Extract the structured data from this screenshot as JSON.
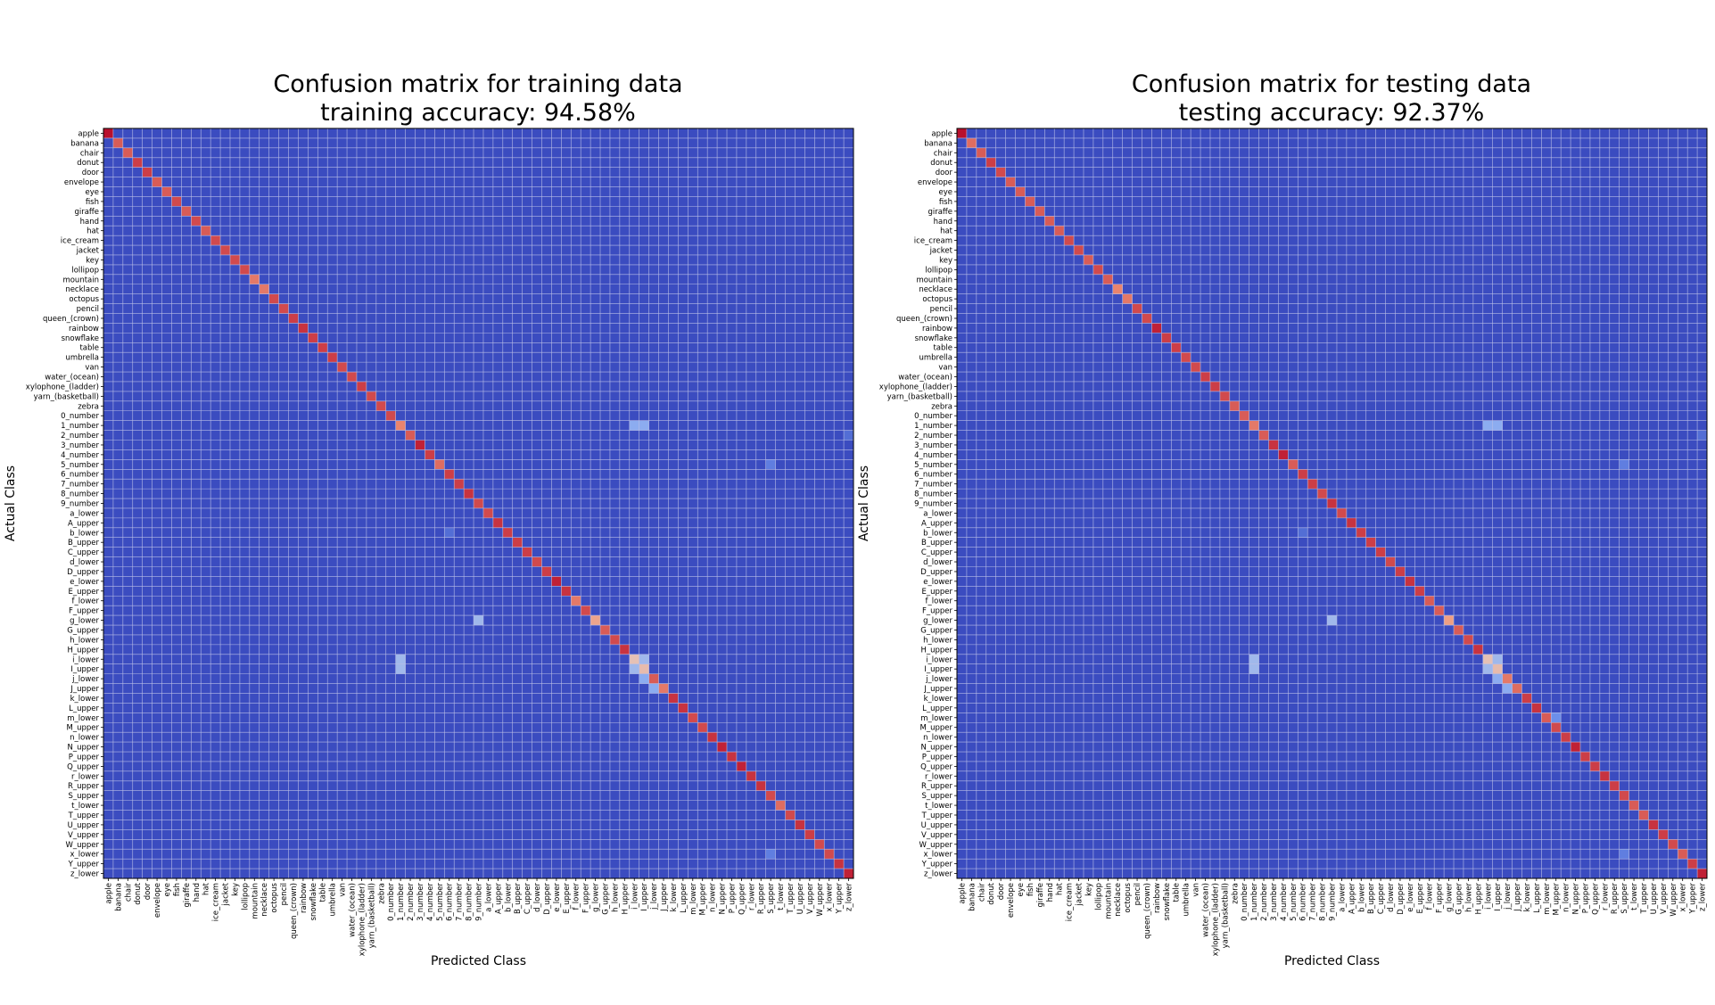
{
  "chart_data": [
    {
      "type": "heatmap",
      "title": "Confusion matrix for training data",
      "subtitle": "training accuracy: 94.58%",
      "xlabel": "Predicted Class",
      "ylabel": "Actual Class",
      "grid": true,
      "colormap": "coolwarm",
      "classes": [
        "apple",
        "banana",
        "chair",
        "donut",
        "door",
        "envelope",
        "eye",
        "fish",
        "giraffe",
        "hand",
        "hat",
        "ice_cream",
        "jacket",
        "key",
        "lollipop",
        "mountain",
        "necklace",
        "octopus",
        "pencil",
        "queen_(crown)",
        "rainbow",
        "snowflake",
        "table",
        "umbrella",
        "van",
        "water_(ocean)",
        "xylophone_(ladder)",
        "yarn_(basketball)",
        "zebra",
        "0_number",
        "1_number",
        "2_number",
        "3_number",
        "4_number",
        "5_number",
        "6_number",
        "7_number",
        "8_number",
        "9_number",
        "a_lower",
        "A_upper",
        "b_lower",
        "B_upper",
        "C_upper",
        "d_lower",
        "D_upper",
        "e_lower",
        "E_upper",
        "f_lower",
        "F_upper",
        "g_lower",
        "G_upper",
        "h_lower",
        "H_upper",
        "i_lower",
        "I_upper",
        "j_lower",
        "J_upper",
        "k_lower",
        "L_upper",
        "m_lower",
        "M_upper",
        "n_lower",
        "N_upper",
        "P_upper",
        "Q_upper",
        "r_lower",
        "R_upper",
        "S_upper",
        "t_lower",
        "T_upper",
        "U_upper",
        "V_upper",
        "W_upper",
        "x_lower",
        "Y_upper",
        "z_lower"
      ],
      "diagonal": [
        0.98,
        0.85,
        0.85,
        0.9,
        0.9,
        0.85,
        0.85,
        0.88,
        0.85,
        0.88,
        0.85,
        0.88,
        0.88,
        0.88,
        0.88,
        0.8,
        0.8,
        0.88,
        0.88,
        0.9,
        0.92,
        0.9,
        0.9,
        0.9,
        0.88,
        0.88,
        0.9,
        0.88,
        0.88,
        0.88,
        0.78,
        0.85,
        0.95,
        0.9,
        0.82,
        0.9,
        0.9,
        0.92,
        0.88,
        0.88,
        0.92,
        0.9,
        0.9,
        0.9,
        0.88,
        0.9,
        0.95,
        0.92,
        0.8,
        0.88,
        0.7,
        0.85,
        0.88,
        0.92,
        0.6,
        0.62,
        0.85,
        0.8,
        0.92,
        0.92,
        0.88,
        0.88,
        0.92,
        0.95,
        0.92,
        0.95,
        0.92,
        0.92,
        0.88,
        0.82,
        0.88,
        0.92,
        0.9,
        0.88,
        0.88,
        0.92,
        0.95
      ],
      "offdiag": [
        [
          30,
          54,
          0.3
        ],
        [
          30,
          55,
          0.3
        ],
        [
          54,
          30,
          0.35
        ],
        [
          55,
          30,
          0.35
        ],
        [
          54,
          55,
          0.35
        ],
        [
          55,
          54,
          0.35
        ],
        [
          56,
          55,
          0.3
        ],
        [
          57,
          56,
          0.3
        ],
        [
          50,
          38,
          0.35
        ],
        [
          34,
          68,
          0.15
        ],
        [
          74,
          68,
          0.15
        ],
        [
          41,
          35,
          0.1
        ],
        [
          31,
          76,
          0.1
        ]
      ]
    },
    {
      "type": "heatmap",
      "title": "Confusion matrix for testing data",
      "subtitle": "testing accuracy: 92.37%",
      "xlabel": "Predicted Class",
      "ylabel": "Actual Class",
      "grid": true,
      "colormap": "coolwarm",
      "classes": [
        "apple",
        "banana",
        "chair",
        "donut",
        "door",
        "envelope",
        "eye",
        "fish",
        "giraffe",
        "hand",
        "hat",
        "ice_cream",
        "jacket",
        "key",
        "lollipop",
        "mountain",
        "necklace",
        "octopus",
        "pencil",
        "queen_(crown)",
        "rainbow",
        "snowflake",
        "table",
        "umbrella",
        "van",
        "water_(ocean)",
        "xylophone_(ladder)",
        "yarn_(basketball)",
        "zebra",
        "0_number",
        "1_number",
        "2_number",
        "3_number",
        "4_number",
        "5_number",
        "6_number",
        "7_number",
        "8_number",
        "9_number",
        "a_lower",
        "A_upper",
        "b_lower",
        "B_upper",
        "C_upper",
        "d_lower",
        "D_upper",
        "e_lower",
        "E_upper",
        "f_lower",
        "F_upper",
        "g_lower",
        "G_upper",
        "h_lower",
        "H_upper",
        "i_lower",
        "I_upper",
        "j_lower",
        "J_upper",
        "k_lower",
        "L_upper",
        "m_lower",
        "M_upper",
        "n_lower",
        "N_upper",
        "P_upper",
        "Q_upper",
        "r_lower",
        "R_upper",
        "S_upper",
        "t_lower",
        "T_upper",
        "U_upper",
        "V_upper",
        "W_upper",
        "x_lower",
        "Y_upper",
        "z_lower"
      ],
      "diagonal": [
        0.98,
        0.82,
        0.85,
        0.9,
        0.88,
        0.85,
        0.85,
        0.85,
        0.85,
        0.85,
        0.85,
        0.88,
        0.88,
        0.85,
        0.88,
        0.85,
        0.78,
        0.8,
        0.88,
        0.88,
        0.95,
        0.9,
        0.9,
        0.88,
        0.88,
        0.9,
        0.9,
        0.88,
        0.85,
        0.85,
        0.8,
        0.85,
        0.92,
        0.95,
        0.85,
        0.9,
        0.9,
        0.88,
        0.92,
        0.88,
        0.92,
        0.9,
        0.9,
        0.9,
        0.88,
        0.9,
        0.92,
        0.9,
        0.85,
        0.85,
        0.72,
        0.85,
        0.88,
        0.92,
        0.6,
        0.62,
        0.8,
        0.82,
        0.9,
        0.92,
        0.85,
        0.88,
        0.9,
        0.95,
        0.9,
        0.9,
        0.92,
        0.9,
        0.88,
        0.85,
        0.85,
        0.92,
        0.9,
        0.88,
        0.85,
        0.9,
        0.95
      ],
      "offdiag": [
        [
          30,
          54,
          0.3
        ],
        [
          30,
          55,
          0.3
        ],
        [
          54,
          30,
          0.35
        ],
        [
          55,
          30,
          0.35
        ],
        [
          54,
          55,
          0.35
        ],
        [
          55,
          54,
          0.35
        ],
        [
          56,
          55,
          0.3
        ],
        [
          57,
          56,
          0.3
        ],
        [
          50,
          38,
          0.35
        ],
        [
          34,
          68,
          0.15
        ],
        [
          74,
          68,
          0.15
        ],
        [
          41,
          35,
          0.1
        ],
        [
          31,
          76,
          0.1
        ],
        [
          60,
          61,
          0.2
        ]
      ]
    }
  ]
}
